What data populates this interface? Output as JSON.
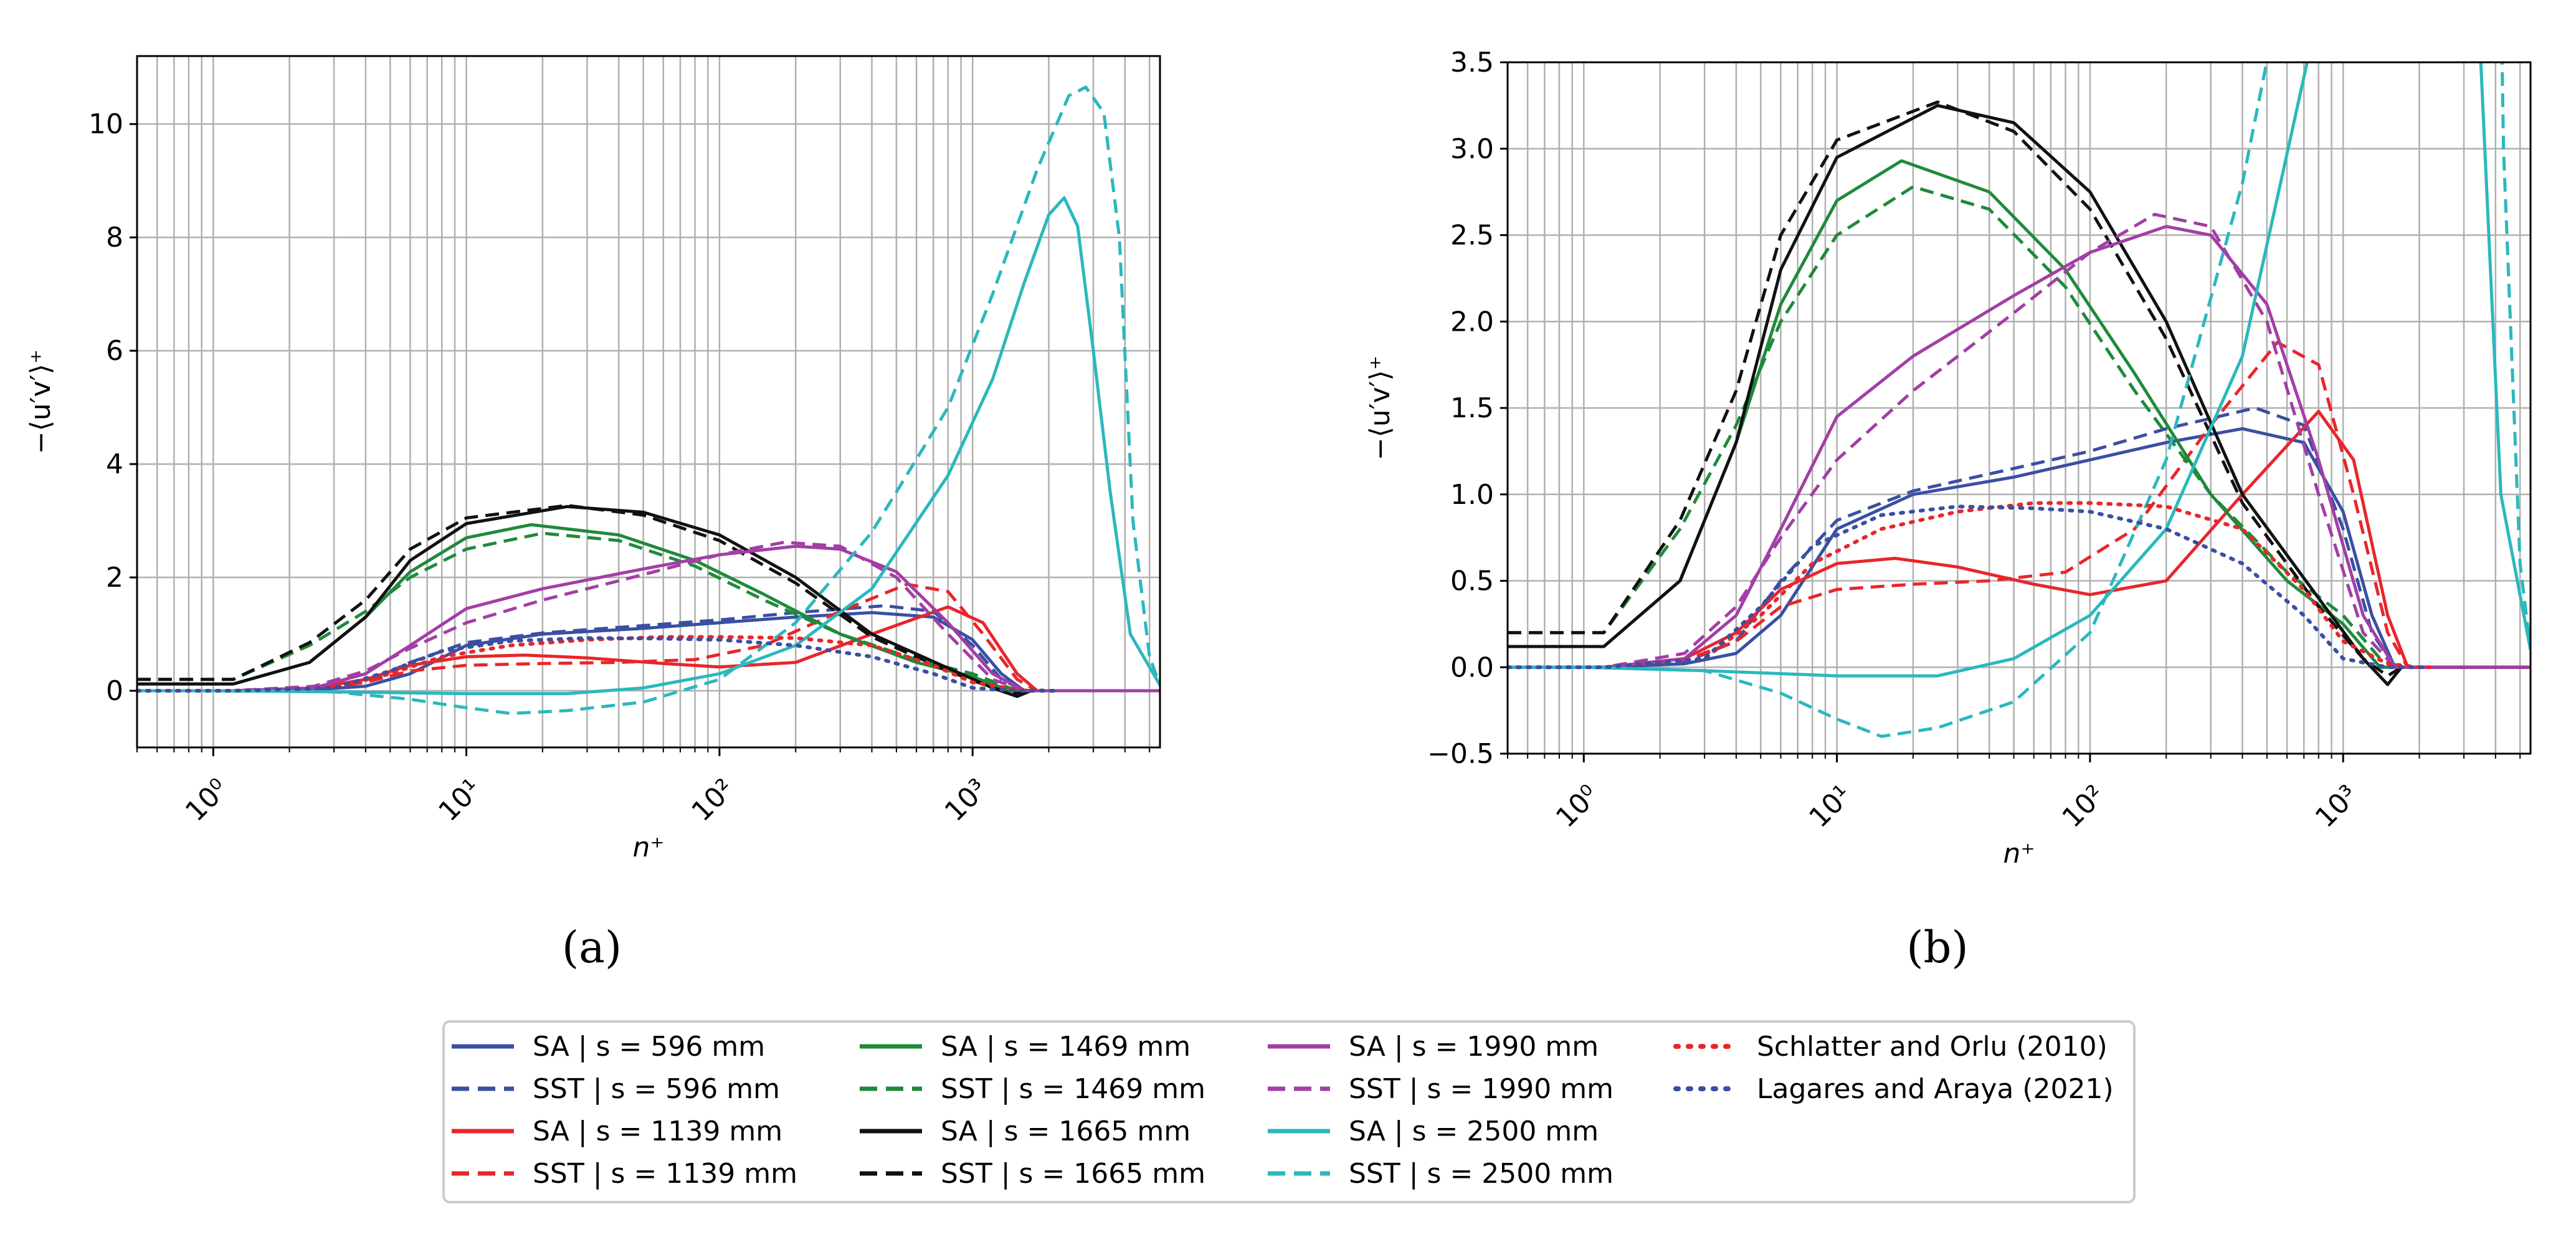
{
  "chart_data": [
    {
      "type": "line",
      "id": "a",
      "caption": "(a)",
      "xlabel": "n⁺",
      "ylabel": "−⟨u′v′⟩⁺",
      "xscale": "log",
      "xlim": [
        0.5,
        5500
      ],
      "ylim": [
        -1,
        11.2
      ],
      "yticks": [
        0,
        2,
        4,
        6,
        8,
        10
      ],
      "ytick_labels": [
        "0",
        "2",
        "4",
        "6",
        "8",
        "10"
      ],
      "xticks": [
        1,
        10,
        100,
        1000
      ],
      "xtick_labels": [
        "10⁰",
        "10¹",
        "10²",
        "10³"
      ],
      "grid": true,
      "series": [
        {
          "name": "SA | s = 596 mm",
          "color": "#3a4fa3",
          "style": "solid",
          "x": [
            0.5,
            1.2,
            2.5,
            4,
            6,
            10,
            20,
            50,
            100,
            200,
            400,
            700,
            1000,
            1300,
            1600,
            2200,
            5500
          ],
          "y": [
            0,
            0,
            0.02,
            0.08,
            0.3,
            0.8,
            1.0,
            1.1,
            1.2,
            1.3,
            1.38,
            1.3,
            0.9,
            0.3,
            0,
            0,
            0
          ]
        },
        {
          "name": "SST | s = 596 mm",
          "color": "#3a4fa3",
          "style": "dashed",
          "x": [
            0.5,
            1.2,
            2.5,
            4,
            6,
            10,
            20,
            50,
            100,
            200,
            450,
            700,
            1000,
            1300,
            1600,
            2200,
            5500
          ],
          "y": [
            0,
            0,
            0.03,
            0.15,
            0.5,
            0.85,
            1.02,
            1.15,
            1.25,
            1.38,
            1.5,
            1.4,
            0.8,
            0.2,
            0,
            0,
            0
          ]
        },
        {
          "name": "SA | s = 1139 mm",
          "color": "#e8262b",
          "style": "solid",
          "x": [
            0.5,
            1.2,
            2.5,
            4,
            6,
            10,
            17,
            30,
            60,
            100,
            200,
            400,
            800,
            1100,
            1500,
            1800,
            2200,
            5500
          ],
          "y": [
            0,
            0,
            0.05,
            0.2,
            0.45,
            0.6,
            0.63,
            0.58,
            0.48,
            0.42,
            0.5,
            1.0,
            1.48,
            1.2,
            0.3,
            0,
            0,
            0
          ]
        },
        {
          "name": "SST | s = 1139 mm",
          "color": "#e8262b",
          "style": "dashed",
          "x": [
            0.5,
            1.2,
            2.5,
            4,
            6,
            10,
            20,
            40,
            80,
            150,
            300,
            550,
            800,
            1100,
            1500,
            1800,
            2200,
            5500
          ],
          "y": [
            0,
            0,
            0.04,
            0.15,
            0.35,
            0.45,
            0.48,
            0.5,
            0.55,
            0.8,
            1.4,
            1.88,
            1.75,
            1.0,
            0.2,
            0,
            0,
            0
          ]
        },
        {
          "name": "SA | s = 1469 mm",
          "color": "#1f8a3a",
          "style": "solid",
          "x": [
            0.5,
            1.2,
            2.4,
            4,
            6,
            10,
            18,
            40,
            80,
            150,
            300,
            600,
            1000,
            1400,
            1700,
            2200,
            5500
          ],
          "y": [
            0.12,
            0.12,
            0.5,
            1.3,
            2.1,
            2.7,
            2.93,
            2.75,
            2.3,
            1.7,
            1.0,
            0.5,
            0.25,
            0,
            0,
            0,
            0
          ]
        },
        {
          "name": "SST | s = 1469 mm",
          "color": "#1f8a3a",
          "style": "dashed",
          "x": [
            0.5,
            1.2,
            2.4,
            4,
            6,
            10,
            20,
            40,
            80,
            150,
            300,
            600,
            1000,
            1400,
            1700,
            2200,
            5500
          ],
          "y": [
            0.2,
            0.2,
            0.8,
            1.4,
            2.0,
            2.5,
            2.78,
            2.65,
            2.2,
            1.6,
            1.0,
            0.55,
            0.3,
            0.05,
            0,
            0,
            0
          ]
        },
        {
          "name": "SA | s = 1665 mm",
          "color": "#111111",
          "style": "solid",
          "x": [
            0.5,
            1.2,
            2.4,
            4,
            6,
            10,
            25,
            50,
            100,
            200,
            400,
            800,
            1200,
            1500,
            1700,
            2200,
            5500
          ],
          "y": [
            0.12,
            0.12,
            0.5,
            1.3,
            2.3,
            2.95,
            3.25,
            3.15,
            2.75,
            2.0,
            1.0,
            0.4,
            0.05,
            -0.1,
            0,
            0,
            0
          ]
        },
        {
          "name": "SST | s = 1665 mm",
          "color": "#111111",
          "style": "dashed",
          "x": [
            0.5,
            1.2,
            2.4,
            4,
            6,
            10,
            25,
            50,
            100,
            200,
            400,
            800,
            1200,
            1500,
            1700,
            2200,
            5500
          ],
          "y": [
            0.2,
            0.2,
            0.85,
            1.6,
            2.5,
            3.05,
            3.27,
            3.1,
            2.65,
            1.9,
            0.95,
            0.35,
            0.05,
            -0.05,
            0,
            0,
            0
          ]
        },
        {
          "name": "SA | s = 1990 mm",
          "color": "#a23ea6",
          "style": "solid",
          "x": [
            0.5,
            1.2,
            2.5,
            4,
            6,
            10,
            20,
            50,
            100,
            200,
            300,
            500,
            800,
            1200,
            1600,
            2200,
            5500
          ],
          "y": [
            0,
            0,
            0.05,
            0.3,
            0.8,
            1.45,
            1.8,
            2.15,
            2.4,
            2.55,
            2.5,
            2.1,
            1.2,
            0.3,
            0,
            0,
            0
          ]
        },
        {
          "name": "SST | s = 1990 mm",
          "color": "#a23ea6",
          "style": "dashed",
          "x": [
            0.5,
            1.2,
            2.5,
            4,
            6,
            10,
            20,
            50,
            100,
            180,
            300,
            500,
            800,
            1200,
            1600,
            2200,
            5500
          ],
          "y": [
            0,
            0,
            0.08,
            0.35,
            0.75,
            1.2,
            1.6,
            2.05,
            2.4,
            2.62,
            2.55,
            2.0,
            1.0,
            0.2,
            0,
            0,
            0
          ]
        },
        {
          "name": "SA | s = 2500 mm",
          "color": "#2ab8bd",
          "style": "solid",
          "x": [
            0.5,
            1,
            3,
            10,
            25,
            50,
            100,
            200,
            400,
            800,
            1200,
            1600,
            2000,
            2300,
            2600,
            3000,
            3500,
            4200,
            5500
          ],
          "y": [
            0,
            0,
            -0.02,
            -0.05,
            -0.05,
            0.05,
            0.3,
            0.8,
            1.8,
            3.8,
            5.5,
            7.2,
            8.4,
            8.7,
            8.2,
            6.0,
            3.5,
            1.0,
            0.1
          ]
        },
        {
          "name": "SST | s = 2500 mm",
          "color": "#2ab8bd",
          "style": "dashed",
          "x": [
            0.5,
            1,
            3,
            6,
            10,
            15,
            25,
            50,
            100,
            200,
            400,
            800,
            1200,
            1800,
            2400,
            2800,
            3300,
            3800,
            4300,
            5000,
            5500
          ],
          "y": [
            0,
            0,
            -0.02,
            -0.15,
            -0.3,
            -0.4,
            -0.35,
            -0.2,
            0.2,
            1.2,
            2.8,
            5.0,
            7.0,
            9.2,
            10.5,
            10.65,
            10.2,
            8.0,
            3.0,
            0.6,
            0.1
          ]
        },
        {
          "name": "Schlatter and Orlu (2010)",
          "color": "#e8262b",
          "style": "dotted",
          "x": [
            0.5,
            1.2,
            3,
            5,
            8,
            15,
            30,
            60,
            100,
            200,
            400,
            700,
            1000,
            1500,
            2000,
            2200
          ],
          "y": [
            0,
            0,
            0.05,
            0.3,
            0.6,
            0.8,
            0.9,
            0.95,
            0.95,
            0.93,
            0.8,
            0.45,
            0.15,
            0.02,
            0,
            0
          ]
        },
        {
          "name": "Lagares and Araya (2021)",
          "color": "#3a4fa3",
          "style": "dotted",
          "x": [
            0.5,
            1.2,
            3,
            5,
            8,
            15,
            30,
            60,
            100,
            200,
            400,
            700,
            1000,
            1500,
            2000,
            2200
          ],
          "y": [
            0,
            0,
            0.05,
            0.35,
            0.7,
            0.88,
            0.93,
            0.92,
            0.9,
            0.8,
            0.6,
            0.3,
            0.05,
            0,
            0,
            0
          ]
        }
      ]
    },
    {
      "type": "line",
      "id": "b",
      "caption": "(b)",
      "xlabel": "n⁺",
      "ylabel": "−⟨u′v′⟩⁺",
      "xscale": "log",
      "xlim": [
        0.5,
        5500
      ],
      "ylim": [
        -0.5,
        3.5
      ],
      "yticks": [
        -0.5,
        0,
        0.5,
        1,
        1.5,
        2,
        2.5,
        3,
        3.5
      ],
      "ytick_labels": [
        "−0.5",
        "0.0",
        "0.5",
        "1.0",
        "1.5",
        "2.0",
        "2.5",
        "3.0",
        "3.5"
      ],
      "xticks": [
        1,
        10,
        100,
        1000
      ],
      "xtick_labels": [
        "10⁰",
        "10¹",
        "10²",
        "10³"
      ],
      "grid": true,
      "series_ref": "a"
    }
  ],
  "legend": {
    "entries": [
      {
        "label": "SA | s = 596 mm",
        "color": "#3a4fa3",
        "style": "solid"
      },
      {
        "label": "SST | s = 596 mm",
        "color": "#3a4fa3",
        "style": "dashed"
      },
      {
        "label": "SA | s = 1139 mm",
        "color": "#e8262b",
        "style": "solid"
      },
      {
        "label": "SST | s = 1139 mm",
        "color": "#e8262b",
        "style": "dashed"
      },
      {
        "label": "SA | s = 1469 mm",
        "color": "#1f8a3a",
        "style": "solid"
      },
      {
        "label": "SST | s = 1469 mm",
        "color": "#1f8a3a",
        "style": "dashed"
      },
      {
        "label": "SA | s = 1665 mm",
        "color": "#111111",
        "style": "solid"
      },
      {
        "label": "SST | s = 1665 mm",
        "color": "#111111",
        "style": "dashed"
      },
      {
        "label": "SA | s = 1990 mm",
        "color": "#a23ea6",
        "style": "solid"
      },
      {
        "label": "SST | s = 1990 mm",
        "color": "#a23ea6",
        "style": "dashed"
      },
      {
        "label": "SA | s = 2500 mm",
        "color": "#2ab8bd",
        "style": "solid"
      },
      {
        "label": "SST | s = 2500 mm",
        "color": "#2ab8bd",
        "style": "dashed"
      },
      {
        "label": "Schlatter and Orlu (2010)",
        "color": "#e8262b",
        "style": "dotted"
      },
      {
        "label": "Lagares and Araya (2021)",
        "color": "#3a4fa3",
        "style": "dotted"
      }
    ]
  }
}
